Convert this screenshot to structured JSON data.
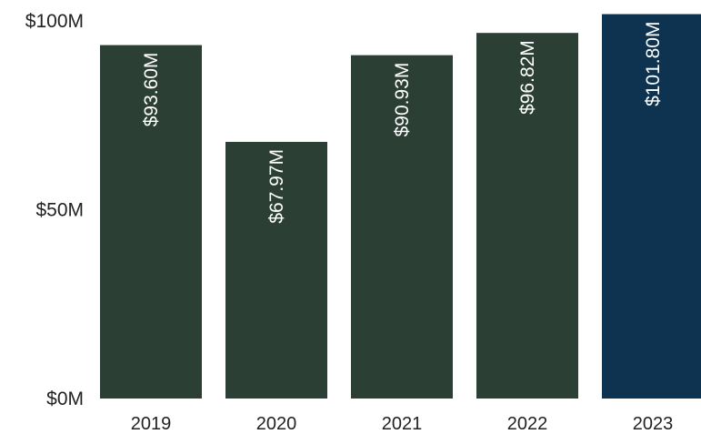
{
  "chart_data": {
    "type": "bar",
    "categories": [
      "2019",
      "2020",
      "2021",
      "2022",
      "2023"
    ],
    "values": [
      93.6,
      67.97,
      90.93,
      96.82,
      101.8
    ],
    "data_labels": [
      "$93.60M",
      "$67.97M",
      "$90.93M",
      "$96.82M",
      "$101.80M"
    ],
    "value_unit": "$M",
    "ylim": [
      0,
      100
    ],
    "y_ticks": [
      {
        "value": 0,
        "label": "$0M"
      },
      {
        "value": 50,
        "label": "$50M"
      },
      {
        "value": 100,
        "label": "$100M"
      }
    ],
    "grid": false,
    "legend": "none",
    "colors": {
      "bar": "#2b3f35",
      "highlight_bar": "#0e3350",
      "highlight_category": "2023"
    }
  }
}
